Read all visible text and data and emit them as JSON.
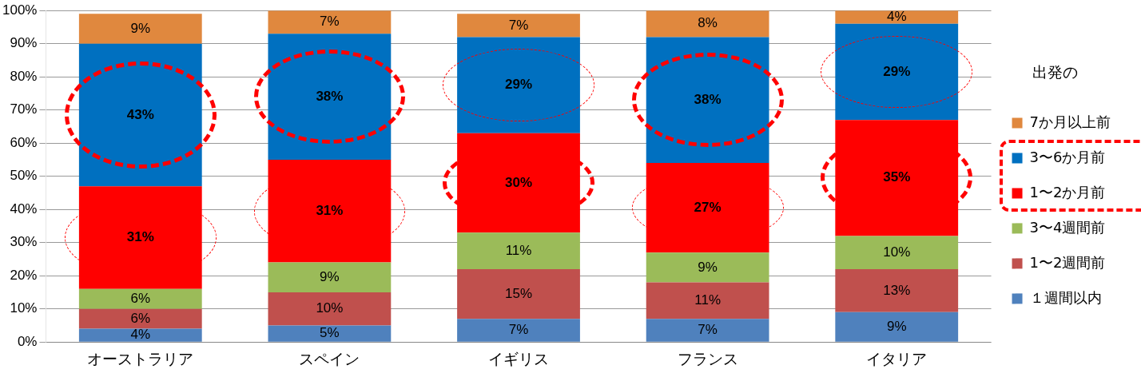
{
  "chart_data": {
    "type": "bar",
    "stacked": true,
    "categories": [
      "オーストラリア",
      "スペイン",
      "イギリス",
      "フランス",
      "イタリア"
    ],
    "ylim": [
      0,
      100
    ],
    "yticks": [
      {
        "value": 0,
        "label": "0%"
      },
      {
        "value": 10,
        "label": "10%"
      },
      {
        "value": 20,
        "label": "20%"
      },
      {
        "value": 30,
        "label": "30%"
      },
      {
        "value": 40,
        "label": "40%"
      },
      {
        "value": 50,
        "label": "50%"
      },
      {
        "value": 60,
        "label": "60%"
      },
      {
        "value": 70,
        "label": "70%"
      },
      {
        "value": 80,
        "label": "80%"
      },
      {
        "value": 90,
        "label": "90%"
      },
      {
        "value": 100,
        "label": "100%"
      }
    ],
    "grid": "y",
    "legend": "right",
    "legend_title": "出発の",
    "series": [
      {
        "name": "１週間以内",
        "color": "#4f81bd",
        "values": [
          4,
          5,
          7,
          7,
          9
        ],
        "value_labels": [
          "4%",
          "5%",
          "7%",
          "7%",
          "9%"
        ]
      },
      {
        "name": "1〜2週間前",
        "color": "#c0504d",
        "values": [
          6,
          10,
          15,
          11,
          13
        ],
        "value_labels": [
          "6%",
          "10%",
          "15%",
          "11%",
          "13%"
        ]
      },
      {
        "name": "3〜4週間前",
        "color": "#9bbb59",
        "values": [
          6,
          9,
          11,
          9,
          10
        ],
        "value_labels": [
          "6%",
          "9%",
          "11%",
          "9%",
          "10%"
        ]
      },
      {
        "name": "1〜2か月前",
        "color": "#ff0000",
        "values": [
          31,
          31,
          30,
          27,
          35
        ],
        "value_labels": [
          "31%",
          "31%",
          "30%",
          "27%",
          "35%"
        ]
      },
      {
        "name": "3〜6か月前",
        "color": "#0070c0",
        "values": [
          43,
          38,
          29,
          38,
          29
        ],
        "value_labels": [
          "43%",
          "38%",
          "29%",
          "38%",
          "29%"
        ]
      },
      {
        "name": "7か月以上前",
        "color": "#e0883e",
        "values": [
          9,
          7,
          7,
          8,
          4
        ],
        "value_labels": [
          "9%",
          "7%",
          "7%",
          "8%",
          "4%"
        ]
      }
    ]
  }
}
